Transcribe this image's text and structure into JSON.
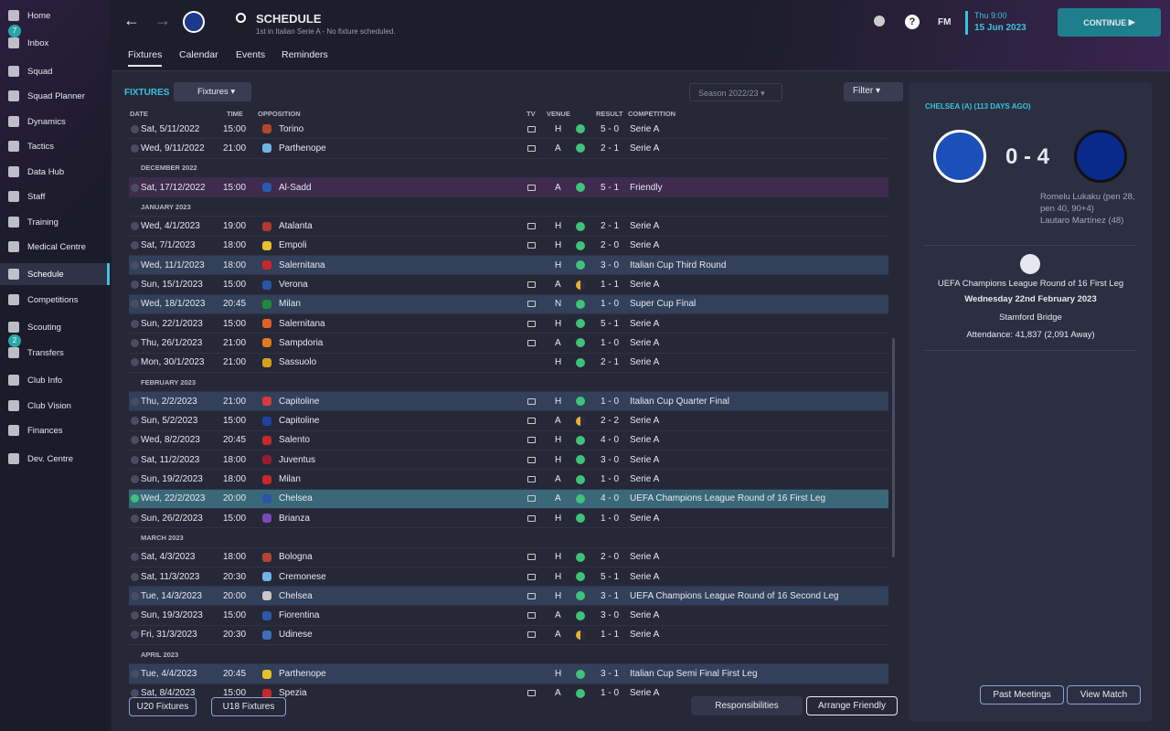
{
  "sidebar": [
    {
      "label": "Home"
    },
    {
      "label": "Inbox",
      "badge": "7"
    },
    {
      "label": "Squad"
    },
    {
      "label": "Squad Planner"
    },
    {
      "label": "Dynamics"
    },
    {
      "label": "Tactics"
    },
    {
      "label": "Data Hub"
    },
    {
      "label": "Staff"
    },
    {
      "label": "Training"
    },
    {
      "label": "Medical Centre"
    },
    {
      "label": "Schedule",
      "active": true
    },
    {
      "label": "Competitions"
    },
    {
      "label": "Scouting"
    },
    {
      "label": "Transfers",
      "badge": "2"
    },
    {
      "label": "Club Info"
    },
    {
      "label": "Club Vision"
    },
    {
      "label": "Finances"
    },
    {
      "label": "Dev. Centre"
    }
  ],
  "header": {
    "title": "SCHEDULE",
    "subtitle": "1st in Italian Serie A - No fixture scheduled.",
    "tabs": [
      "Fixtures",
      "Calendar",
      "Events",
      "Reminders"
    ],
    "fm": "FM",
    "time": "Thu 9:00",
    "date": "15 Jun 2023",
    "continue": "CONTINUE"
  },
  "fixtures": {
    "title": "FIXTURES",
    "view": "Fixtures",
    "season": "Season 2022/23",
    "filter": "Filter",
    "columns": [
      "DATE",
      "TIME",
      "OPPOSITION",
      "TV",
      "VENUE",
      "RESULT",
      "COMPETITION"
    ],
    "rows": [
      {
        "date": "Sat, 5/11/2022",
        "time": "15:00",
        "opponent": "Torino",
        "tv": true,
        "venue": "H",
        "result": "5 - 0",
        "competition": "Serie A"
      },
      {
        "date": "Wed, 9/11/2022",
        "time": "21:00",
        "opponent": "Parthenope",
        "tv": true,
        "venue": "A",
        "result": "2 - 1",
        "competition": "Serie A"
      },
      {
        "group": "DECEMBER 2022"
      },
      {
        "date": "Sat, 17/12/2022",
        "time": "15:00",
        "opponent": "Al-Sadd",
        "tv": true,
        "venue": "A",
        "result": "5 - 1",
        "competition": "Friendly"
      },
      {
        "group": "JANUARY 2023"
      },
      {
        "date": "Wed, 4/1/2023",
        "time": "19:00",
        "opponent": "Atalanta",
        "tv": true,
        "venue": "H",
        "result": "2 - 1",
        "competition": "Serie A"
      },
      {
        "date": "Sat, 7/1/2023",
        "time": "18:00",
        "opponent": "Empoli",
        "tv": true,
        "venue": "H",
        "result": "2 - 0",
        "competition": "Serie A"
      },
      {
        "date": "Wed, 11/1/2023",
        "time": "18:00",
        "opponent": "Salernitana",
        "tv": false,
        "venue": "H",
        "result": "3 - 0",
        "competition": "Italian Cup Third Round"
      },
      {
        "date": "Sun, 15/1/2023",
        "time": "15:00",
        "opponent": "Verona",
        "tv": true,
        "venue": "A",
        "result": "1 - 1",
        "competition": "Serie A"
      },
      {
        "date": "Wed, 18/1/2023",
        "time": "20:45",
        "opponent": "Milan",
        "tv": true,
        "venue": "N",
        "result": "1 - 0",
        "competition": "Super Cup Final"
      },
      {
        "date": "Sun, 22/1/2023",
        "time": "15:00",
        "opponent": "Salernitana",
        "tv": true,
        "venue": "H",
        "result": "5 - 1",
        "competition": "Serie A"
      },
      {
        "date": "Thu, 26/1/2023",
        "time": "21:00",
        "opponent": "Sampdoria",
        "tv": true,
        "venue": "A",
        "result": "1 - 0",
        "competition": "Serie A"
      },
      {
        "date": "Mon, 30/1/2023",
        "time": "21:00",
        "opponent": "Sassuolo",
        "tv": false,
        "venue": "H",
        "result": "2 - 1",
        "competition": "Serie A"
      },
      {
        "group": "FEBRUARY 2023"
      },
      {
        "date": "Thu, 2/2/2023",
        "time": "21:00",
        "opponent": "Capitoline",
        "tv": true,
        "venue": "H",
        "result": "1 - 0",
        "competition": "Italian Cup Quarter Final"
      },
      {
        "date": "Sun, 5/2/2023",
        "time": "15:00",
        "opponent": "Capitoline",
        "tv": true,
        "venue": "A",
        "result": "2 - 2",
        "competition": "Serie A"
      },
      {
        "date": "Wed, 8/2/2023",
        "time": "20:45",
        "opponent": "Salento",
        "tv": true,
        "venue": "H",
        "result": "4 - 0",
        "competition": "Serie A"
      },
      {
        "date": "Sat, 11/2/2023",
        "time": "18:00",
        "opponent": "Juventus",
        "tv": true,
        "venue": "H",
        "result": "3 - 0",
        "competition": "Serie A"
      },
      {
        "date": "Sun, 19/2/2023",
        "time": "18:00",
        "opponent": "Milan",
        "tv": true,
        "venue": "A",
        "result": "1 - 0",
        "competition": "Serie A"
      },
      {
        "date": "Wed, 22/2/2023",
        "time": "20:00",
        "opponent": "Chelsea",
        "tv": true,
        "venue": "A",
        "result": "4 - 0",
        "competition": "UEFA Champions League Round of 16 First Leg",
        "selected": true
      },
      {
        "date": "Sun, 26/2/2023",
        "time": "15:00",
        "opponent": "Brianza",
        "tv": true,
        "venue": "H",
        "result": "1 - 0",
        "competition": "Serie A"
      },
      {
        "group": "MARCH 2023"
      },
      {
        "date": "Sat, 4/3/2023",
        "time": "18:00",
        "opponent": "Bologna",
        "tv": true,
        "venue": "H",
        "result": "2 - 0",
        "competition": "Serie A"
      },
      {
        "date": "Sat, 11/3/2023",
        "time": "20:30",
        "opponent": "Cremonese",
        "tv": true,
        "venue": "H",
        "result": "5 - 1",
        "competition": "Serie A"
      },
      {
        "date": "Tue, 14/3/2023",
        "time": "20:00",
        "opponent": "Chelsea",
        "tv": true,
        "venue": "H",
        "result": "3 - 1",
        "competition": "UEFA Champions League Round of 16 Second Leg"
      },
      {
        "date": "Sun, 19/3/2023",
        "time": "15:00",
        "opponent": "Fiorentina",
        "tv": true,
        "venue": "A",
        "result": "3 - 0",
        "competition": "Serie A"
      },
      {
        "date": "Fri, 31/3/2023",
        "time": "20:30",
        "opponent": "Udinese",
        "tv": true,
        "venue": "A",
        "result": "1 - 1",
        "competition": "Serie A"
      },
      {
        "group": "APRIL 2023"
      },
      {
        "date": "Tue, 4/4/2023",
        "time": "20:45",
        "opponent": "Parthenope",
        "tv": false,
        "venue": "H",
        "result": "3 - 1",
        "competition": "Italian Cup Semi Final First Leg"
      },
      {
        "date": "Sat, 8/4/2023",
        "time": "15:00",
        "opponent": "Spezia",
        "tv": true,
        "venue": "A",
        "result": "1 - 0",
        "competition": "Serie A"
      }
    ],
    "buttons": [
      "U20 Fixtures",
      "U18 Fixtures",
      "Responsibilities",
      "Arrange Friendly"
    ]
  },
  "match": {
    "title": "CHELSEA (A) (113 DAYS AGO)",
    "score": "0 - 4",
    "scorers": "Romelu Lukaku (pen 28, pen 40, 90+4)",
    "scorers2": "Lautaro Martínez (48)",
    "competition": "UEFA Champions League Round of 16  First Leg",
    "date": "Wednesday 22nd February 2023",
    "stadium": "Stamford Bridge",
    "attendance": "Attendance: 41,837 (2,091 Away)",
    "buttons": [
      "Past Meetings",
      "View Match"
    ]
  }
}
